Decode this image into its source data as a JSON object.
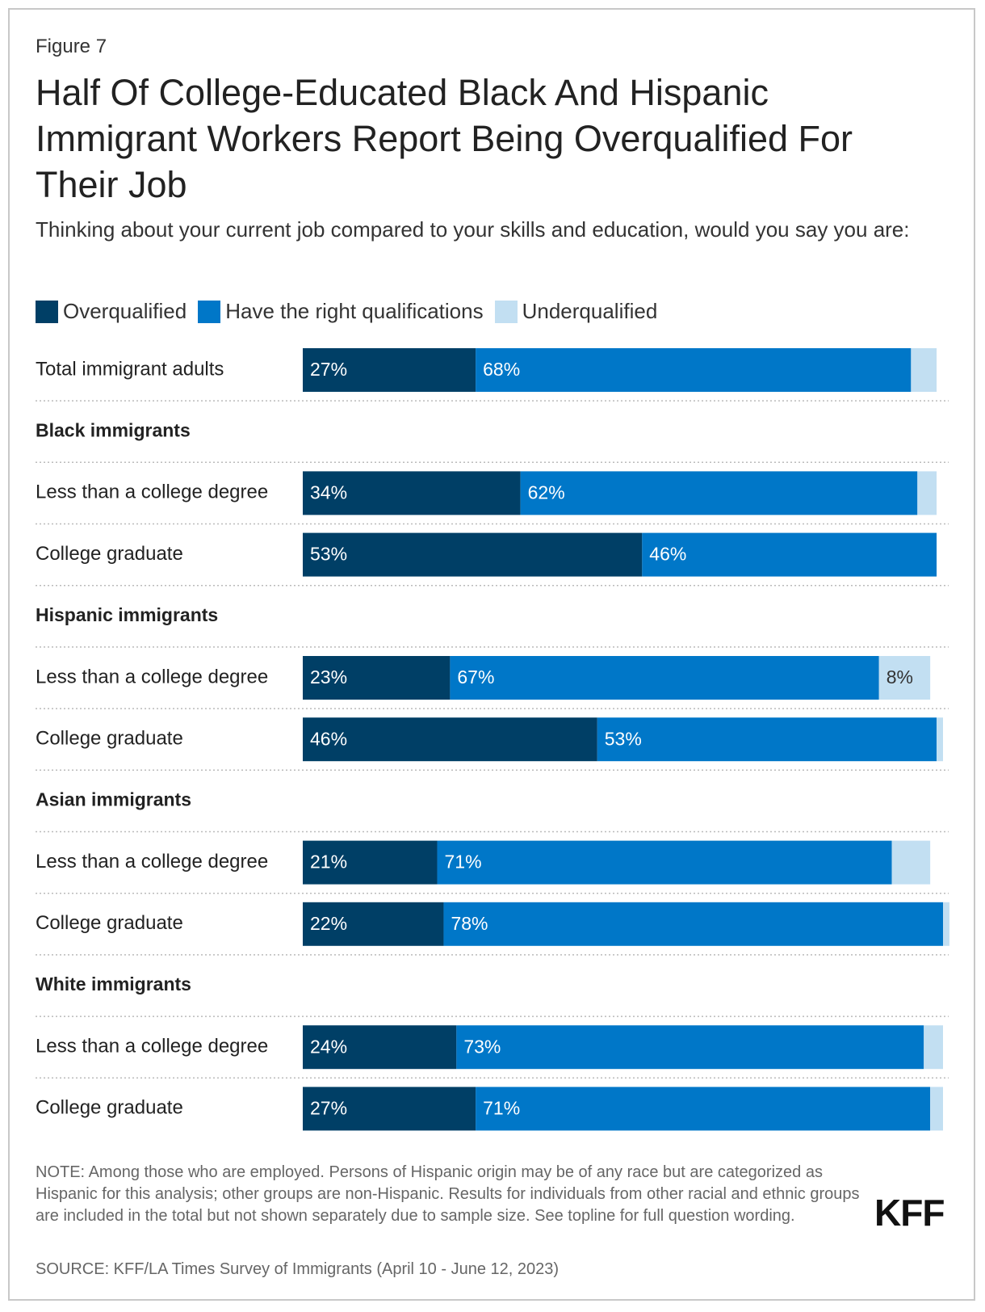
{
  "figure_label": "Figure 7",
  "chart_data": {
    "type": "stacked-bar-horizontal",
    "title": "Half Of College-Educated Black And Hispanic Immigrant Workers Report Being Overqualified For Their Job",
    "subtitle": "Thinking about your current job compared to your skills and education, would you say you are:",
    "categories": [
      "Total immigrant adults",
      "Black immigrants",
      "Less than a college degree",
      "College graduate",
      "Hispanic immigrants",
      "Less than a college degree",
      "College graduate",
      "Asian immigrants",
      "Less than a college degree",
      "College graduate",
      "White immigrants",
      "Less than a college degree",
      "College graduate"
    ],
    "xlim": [
      0,
      100
    ],
    "series": [
      {
        "name": "Overqualified",
        "color": "#003f66",
        "values": [
          27,
          null,
          34,
          53,
          null,
          23,
          46,
          null,
          21,
          22,
          null,
          24,
          27
        ],
        "value_labels": [
          "27%",
          null,
          "34%",
          "53%",
          null,
          "23%",
          "46%",
          null,
          "21%",
          "22%",
          null,
          "24%",
          "27%"
        ]
      },
      {
        "name": "Have the right qualifications",
        "color": "#0077c8",
        "values": [
          68,
          null,
          62,
          46,
          null,
          67,
          53,
          null,
          71,
          78,
          null,
          73,
          71
        ],
        "value_labels": [
          "68%",
          null,
          "62%",
          "46%",
          null,
          "67%",
          "53%",
          null,
          "71%",
          "78%",
          null,
          "73%",
          "71%"
        ]
      },
      {
        "name": "Underqualified",
        "color": "#c2dff2",
        "values": [
          4,
          null,
          3,
          0,
          null,
          8,
          1,
          null,
          6,
          1,
          null,
          3,
          2
        ],
        "value_labels": [
          null,
          null,
          null,
          null,
          null,
          "8%",
          null,
          null,
          null,
          null,
          null,
          null,
          null
        ]
      }
    ]
  },
  "note": "NOTE: Among those who are employed. Persons of Hispanic origin may be of any race but are categorized as Hispanic for this analysis; other groups are non-Hispanic. Results for individuals from other racial and ethnic groups are included in the total but not shown separately due to sample size. See topline for full question wording.",
  "source": "SOURCE: KFF/LA Times Survey of Immigrants (April 10 - June 12, 2023)",
  "logo": "KFF"
}
